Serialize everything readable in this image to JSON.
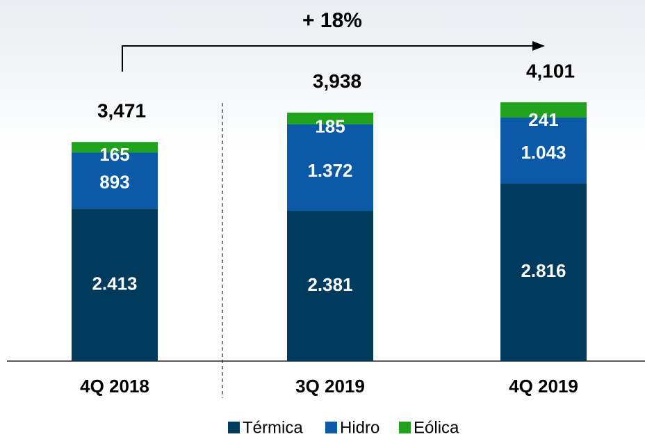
{
  "chart_data": {
    "type": "stacked_bar",
    "categories": [
      "4Q 2018",
      "3Q 2019",
      "4Q 2019"
    ],
    "series": [
      {
        "name": "Térmica",
        "color": "#003a5c",
        "values": [
          2413,
          2381,
          2816
        ],
        "value_labels": [
          "2.413",
          "2.381",
          "2.816"
        ]
      },
      {
        "name": "Hidro",
        "color": "#0a5aa8",
        "values": [
          893,
          1372,
          1043
        ],
        "value_labels": [
          "893",
          "1.372",
          "1.043"
        ]
      },
      {
        "name": "Eólica",
        "color": "#22a31e",
        "values": [
          165,
          185,
          241
        ],
        "value_labels": [
          "165",
          "185",
          "241"
        ]
      }
    ],
    "totals": {
      "values": [
        3471,
        3938,
        4101
      ],
      "value_labels": [
        "3,471",
        "3,938",
        "4,101"
      ]
    },
    "annotation": "+ 18%",
    "legend": "bottom"
  }
}
